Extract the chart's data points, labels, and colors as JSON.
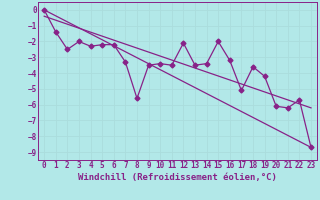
{
  "xlabel": "Windchill (Refroidissement éolien,°C)",
  "bg_color": "#b2e8e8",
  "line_color": "#882288",
  "grid_color": "#aadddd",
  "xlim": [
    -0.5,
    23.5
  ],
  "ylim": [
    -9.5,
    0.5
  ],
  "yticks": [
    0,
    -1,
    -2,
    -3,
    -4,
    -5,
    -6,
    -7,
    -8,
    -9
  ],
  "xticks": [
    0,
    1,
    2,
    3,
    4,
    5,
    6,
    7,
    8,
    9,
    10,
    11,
    12,
    13,
    14,
    15,
    16,
    17,
    18,
    19,
    20,
    21,
    22,
    23
  ],
  "data_x": [
    0,
    1,
    2,
    3,
    4,
    5,
    6,
    7,
    8,
    9,
    10,
    11,
    12,
    13,
    14,
    15,
    16,
    17,
    18,
    19,
    20,
    21,
    22,
    23
  ],
  "data_y": [
    0.0,
    -1.4,
    -2.5,
    -2.0,
    -2.3,
    -2.2,
    -2.2,
    -3.3,
    -5.6,
    -3.5,
    -3.4,
    -3.5,
    -2.1,
    -3.5,
    -3.4,
    -2.0,
    -3.2,
    -5.1,
    -3.6,
    -4.2,
    -6.1,
    -6.2,
    -5.7,
    -8.7
  ],
  "trend1_x": [
    0,
    23
  ],
  "trend1_y": [
    -0.4,
    -6.2
  ],
  "trend2_x": [
    0,
    23
  ],
  "trend2_y": [
    0.0,
    -8.7
  ],
  "marker": "D",
  "markersize": 2.5,
  "linewidth": 0.9,
  "fontsize_label": 6.5,
  "fontsize_tick": 5.5
}
